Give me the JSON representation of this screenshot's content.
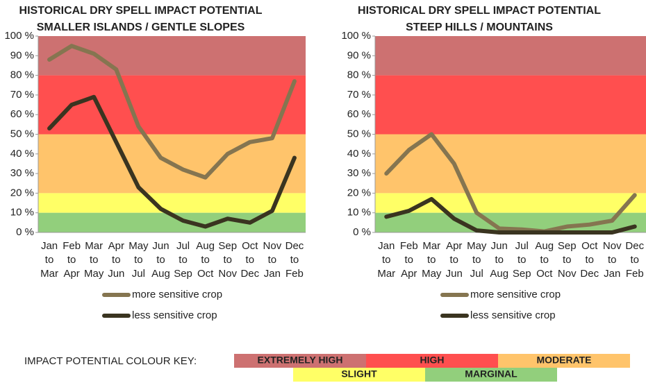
{
  "chart_data": [
    {
      "type": "line",
      "title": "HISTORICAL DRY SPELL IMPACT POTENTIAL",
      "subtitle": "SMALLER ISLANDS / GENTLE SLOPES",
      "categories": [
        [
          "Jan",
          "to",
          "Mar"
        ],
        [
          "Feb",
          "to",
          "Apr"
        ],
        [
          "Mar",
          "to",
          "May"
        ],
        [
          "Apr",
          "to",
          "Jun"
        ],
        [
          "May",
          "to",
          "Jul"
        ],
        [
          "Jun",
          "to",
          "Aug"
        ],
        [
          "Jul",
          "to",
          "Sep"
        ],
        [
          "Aug",
          "to",
          "Oct"
        ],
        [
          "Sep",
          "to",
          "Nov"
        ],
        [
          "Oct",
          "to",
          "Dec"
        ],
        [
          "Nov",
          "to",
          "Jan"
        ],
        [
          "Dec",
          "to",
          "Feb"
        ]
      ],
      "series": [
        {
          "name": "more sensitive crop",
          "color": "#857550",
          "values": [
            88,
            95,
            91,
            83,
            54,
            38,
            32,
            28,
            40,
            46,
            48,
            77
          ]
        },
        {
          "name": "less sensitive crop",
          "color": "#3a3420",
          "values": [
            53,
            65,
            69,
            46,
            23,
            12,
            6,
            3,
            7,
            5,
            11,
            38
          ]
        }
      ],
      "ylim": [
        0,
        100
      ],
      "yticks": [
        {
          "value": 0,
          "label": "0 %"
        },
        {
          "value": 10,
          "label": "10 %"
        },
        {
          "value": 20,
          "label": "20 %"
        },
        {
          "value": 30,
          "label": "30 %"
        },
        {
          "value": 40,
          "label": "40 %"
        },
        {
          "value": 50,
          "label": "50 %"
        },
        {
          "value": 60,
          "label": "60 %"
        },
        {
          "value": 70,
          "label": "70 %"
        },
        {
          "value": 80,
          "label": "80 %"
        },
        {
          "value": 90,
          "label": "90 %"
        },
        {
          "value": 100,
          "label": "100 %"
        }
      ]
    },
    {
      "type": "line",
      "title": "HISTORICAL DRY SPELL IMPACT POTENTIAL",
      "subtitle": "STEEP HILLS / MOUNTAINS",
      "categories": [
        [
          "Jan",
          "to",
          "Mar"
        ],
        [
          "Feb",
          "to",
          "Apr"
        ],
        [
          "Mar",
          "to",
          "May"
        ],
        [
          "Apr",
          "to",
          "Jun"
        ],
        [
          "May",
          "to",
          "Jul"
        ],
        [
          "Jun",
          "to",
          "Aug"
        ],
        [
          "Jul",
          "to",
          "Sep"
        ],
        [
          "Aug",
          "to",
          "Oct"
        ],
        [
          "Sep",
          "to",
          "Nov"
        ],
        [
          "Oct",
          "to",
          "Dec"
        ],
        [
          "Nov",
          "to",
          "Jan"
        ],
        [
          "Dec",
          "to",
          "Feb"
        ]
      ],
      "series": [
        {
          "name": "more sensitive crop",
          "color": "#857550",
          "values": [
            30,
            42,
            50,
            35,
            10,
            2,
            1.5,
            0.5,
            3,
            4,
            6,
            19
          ]
        },
        {
          "name": "less sensitive crop",
          "color": "#3a3420",
          "values": [
            8,
            11,
            17,
            7,
            1,
            0,
            0,
            0,
            0,
            0,
            0,
            3
          ]
        }
      ],
      "ylim": [
        0,
        100
      ],
      "yticks": [
        {
          "value": 0,
          "label": "0 %"
        },
        {
          "value": 10,
          "label": "10 %"
        },
        {
          "value": 20,
          "label": "20 %"
        },
        {
          "value": 30,
          "label": "30 %"
        },
        {
          "value": 40,
          "label": "40 %"
        },
        {
          "value": 50,
          "label": "50 %"
        },
        {
          "value": 60,
          "label": "60 %"
        },
        {
          "value": 70,
          "label": "70 %"
        },
        {
          "value": 80,
          "label": "80 %"
        },
        {
          "value": 90,
          "label": "90 %"
        },
        {
          "value": 100,
          "label": "100 %"
        }
      ]
    }
  ],
  "colour_key": {
    "label": "IMPACT POTENTIAL COLOUR KEY:",
    "levels": [
      {
        "name": "EXTREMELY HIGH",
        "color": "#cd7171",
        "text_color": "#ffffff",
        "range": [
          80,
          100
        ]
      },
      {
        "name": "HIGH",
        "color": "#ff4f4f",
        "text_color": "#c03a3a",
        "range": [
          50,
          80
        ]
      },
      {
        "name": "MODERATE",
        "color": "#ffc46b",
        "text_color": "#8c6c3c",
        "range": [
          20,
          50
        ]
      },
      {
        "name": "SLIGHT",
        "color": "#ffff66",
        "text_color": "#8f8f3a",
        "range": [
          10,
          20
        ]
      },
      {
        "name": "MARGINAL",
        "color": "#92cf7c",
        "text_color": "#4f7f3f",
        "range": [
          0,
          10
        ]
      }
    ]
  }
}
